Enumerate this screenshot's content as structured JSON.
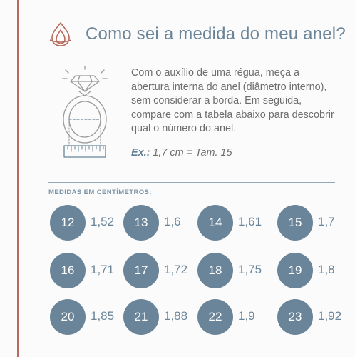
{
  "colors": {
    "accent_bar": "#b86a5e",
    "circle": "#6a8599",
    "title": "#6a8499"
  },
  "header": {
    "title": "Como sei a medida do meu anel?",
    "logo_icon": "flame-icon"
  },
  "illustration": {
    "icon": "ring-with-ruler-icon"
  },
  "instructions": {
    "text": "Com o auxílio de uma régua, meça a abertura interna do anel (diâmetro interno), sem considerar a borda. Em seguida, compare com a tabela abaixo para descobrir qual o número do anel.",
    "example_label": "Ex.:",
    "example_value": "1,7 cm = Tam. 15"
  },
  "table": {
    "title": "MEDIDAS EM CENTÍMETROS:",
    "sizes": [
      {
        "size": "12",
        "cm": "1,52"
      },
      {
        "size": "13",
        "cm": "1,6"
      },
      {
        "size": "14",
        "cm": "1,61"
      },
      {
        "size": "15",
        "cm": "1,7"
      },
      {
        "size": "16",
        "cm": "1,71"
      },
      {
        "size": "17",
        "cm": "1,72"
      },
      {
        "size": "18",
        "cm": "1,75"
      },
      {
        "size": "19",
        "cm": "1,8"
      },
      {
        "size": "20",
        "cm": "1,85"
      },
      {
        "size": "21",
        "cm": "1,88"
      },
      {
        "size": "22",
        "cm": "1,9"
      },
      {
        "size": "23",
        "cm": "1,92"
      }
    ]
  }
}
